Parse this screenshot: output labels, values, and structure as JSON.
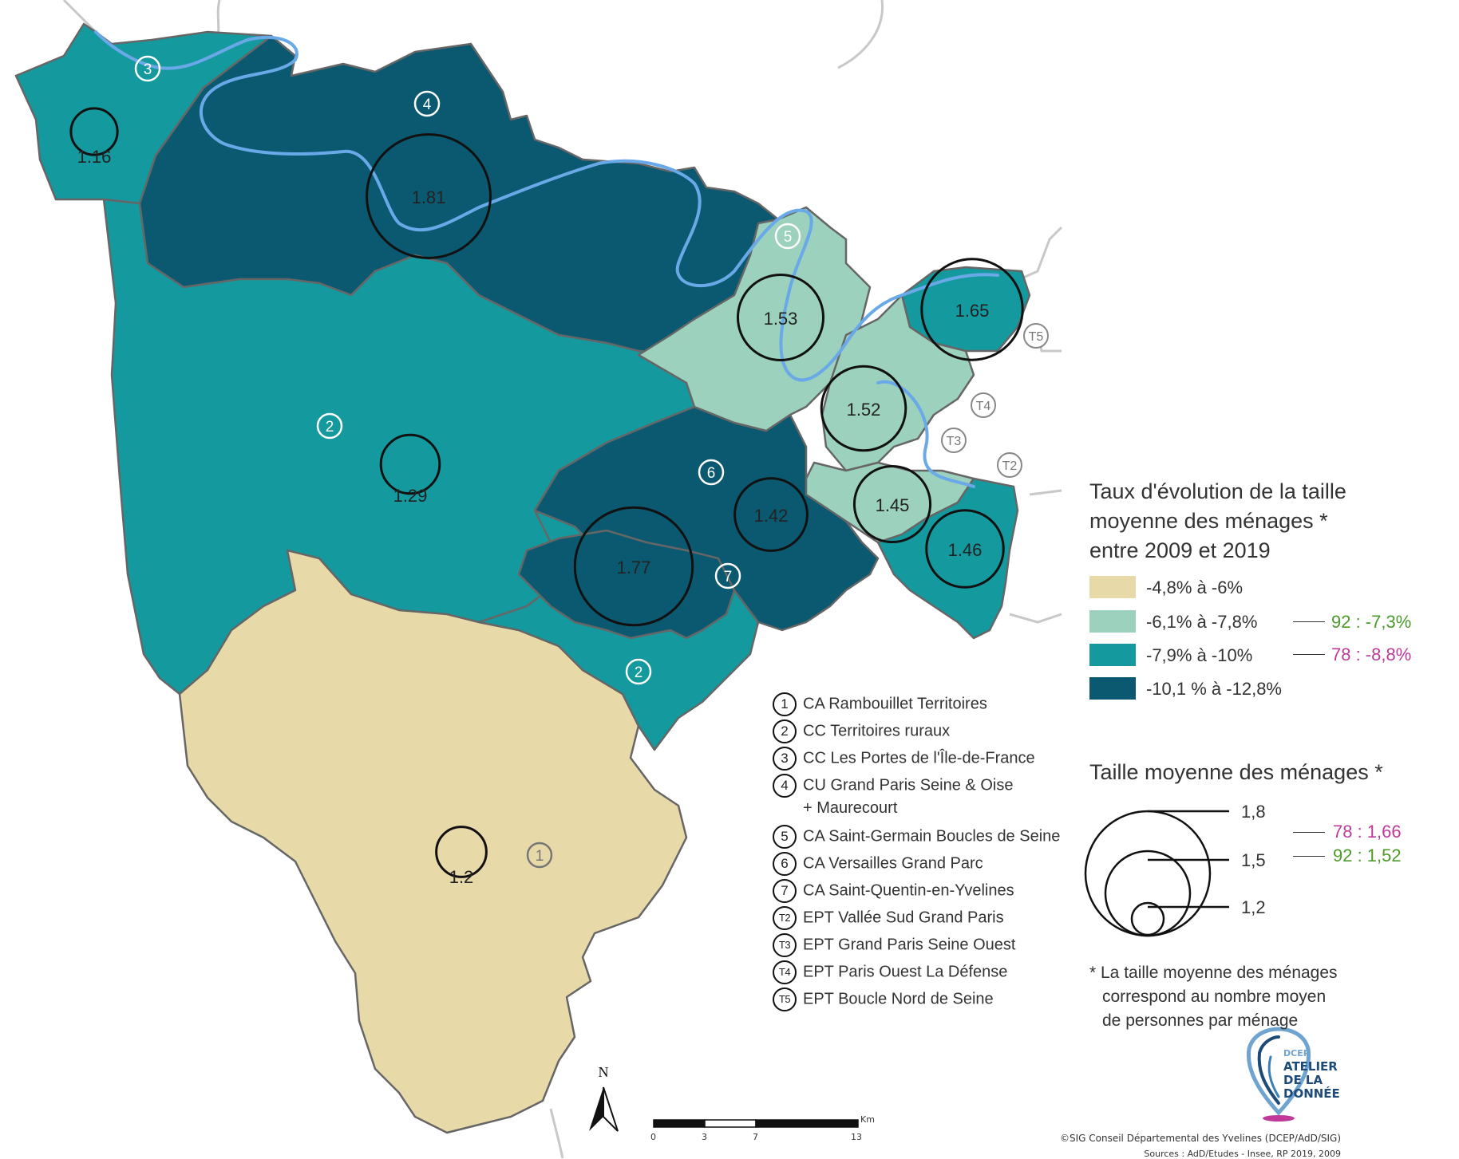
{
  "legend": {
    "rate_title": [
      "Taux d'évolution de la taille",
      "moyenne des ménages *",
      "entre 2009 et 2019"
    ],
    "classes": [
      {
        "label": "-4,8% à -6%",
        "color": "#e8d9a9"
      },
      {
        "label": "-6,1% à -7,8%",
        "color": "#9bd1bd"
      },
      {
        "label": "-7,9% à -10%",
        "color": "#14999e"
      },
      {
        "label": "-10,1 % à -12,8%",
        "color": "#0b5970"
      }
    ],
    "references_rate": [
      {
        "text": "92 : -7,3%",
        "color": "#4c9a2a"
      },
      {
        "text": "78 : -8,8%",
        "color": "#c0399a"
      }
    ],
    "size_title": "Taille moyenne des ménages *",
    "size_values": [
      "1,8",
      "1,5",
      "1,2"
    ],
    "references_size": [
      {
        "text": "78 : 1,66",
        "color": "#c0399a"
      },
      {
        "text": "92 : 1,52",
        "color": "#4c9a2a"
      }
    ],
    "note": [
      "* La taille moyenne des ménages",
      "correspond au nombre moyen",
      "de personnes par ménage"
    ]
  },
  "epci_list": [
    {
      "num": "1",
      "label": "CA Rambouillet Territoires"
    },
    {
      "num": "2",
      "label": "CC Territoires ruraux"
    },
    {
      "num": "3",
      "label": "CC Les Portes de l'Île-de-France"
    },
    {
      "num": "4",
      "label": "CU Grand Paris Seine & Oise",
      "cont": "+ Maurecourt"
    },
    {
      "num": "5",
      "label": "CA Saint-Germain Boucles de Seine"
    },
    {
      "num": "6",
      "label": "CA Versailles Grand Parc"
    },
    {
      "num": "7",
      "label": "CA Saint-Quentin-en-Yvelines"
    },
    {
      "num": "T2",
      "label": "EPT Vallée Sud Grand Paris"
    },
    {
      "num": "T3",
      "label": "EPT Grand Paris Seine Ouest"
    },
    {
      "num": "T4",
      "label": "EPT Paris Ouest La Défense"
    },
    {
      "num": "T5",
      "label": "EPT Boucle Nord de Seine"
    }
  ],
  "map_labels": {
    "territory_numbers": [
      "3",
      "4",
      "5",
      "2",
      "6",
      "7",
      "2",
      "1"
    ],
    "ept_numbers": [
      "T5",
      "T4",
      "T3",
      "T2"
    ]
  },
  "bubbles": [
    {
      "value": "1.16",
      "size": 1.16,
      "territory": "3",
      "class": 2
    },
    {
      "value": "1.81",
      "size": 1.81,
      "territory": "4",
      "class": 3
    },
    {
      "value": "1.53",
      "size": 1.53,
      "territory": "5",
      "class": 1
    },
    {
      "value": "1.65",
      "size": 1.65,
      "territory": "T5",
      "class": 2
    },
    {
      "value": "1.52",
      "size": 1.52,
      "territory": "T4",
      "class": 1
    },
    {
      "value": "1.29",
      "size": 1.29,
      "territory": "2",
      "class": 2
    },
    {
      "value": "1.42",
      "size": 1.42,
      "territory": "6",
      "class": 3
    },
    {
      "value": "1.45",
      "size": 1.45,
      "territory": "T3",
      "class": 1
    },
    {
      "value": "1.77",
      "size": 1.77,
      "territory": "7",
      "class": 3
    },
    {
      "value": "1.46",
      "size": 1.46,
      "territory": "T2",
      "class": 2
    },
    {
      "value": "1.2",
      "size": 1.2,
      "territory": "1",
      "class": 0
    }
  ],
  "north_label": "N",
  "scale": {
    "unit": "Km",
    "ticks": [
      "0",
      "3",
      "7",
      "13"
    ]
  },
  "credits": {
    "line1": "©SIG Conseil Départemental des Yvelines (DCEP/AdD/SIG)",
    "line2": "Sources : AdD/Etudes - Insee, RP 2019, 2009"
  },
  "logo": {
    "line1": "DCEP",
    "line2": "ATELIER",
    "line3": "DE LA",
    "line4": "DONNÉE"
  }
}
